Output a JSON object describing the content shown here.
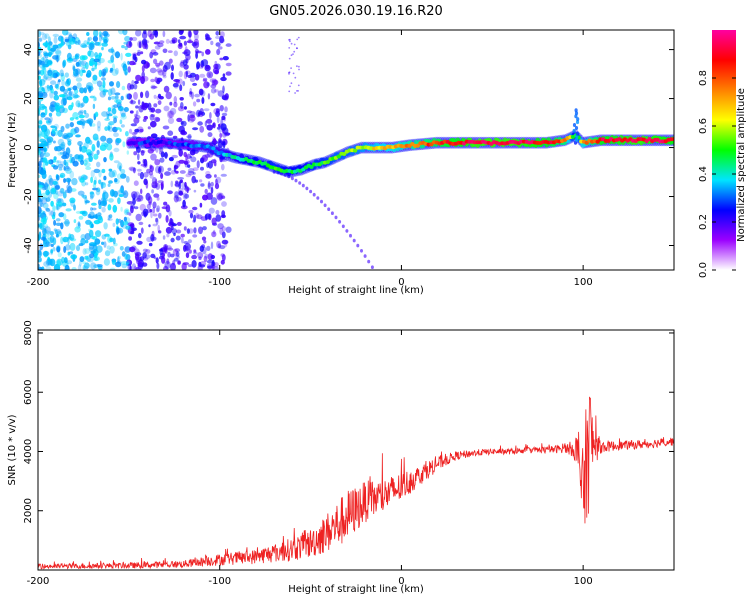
{
  "title": "GN05.2026.030.19.16.R20",
  "spectrogram": {
    "type": "heatmap",
    "xlabel": "Height of straight line (km)",
    "ylabel": "Frequency (Hz)",
    "xlim": [
      -200,
      150
    ],
    "ylim": [
      -50,
      48
    ],
    "xticks": [
      -200,
      -100,
      0,
      100
    ],
    "yticks": [
      -40,
      -20,
      0,
      20,
      40
    ],
    "ridge": {
      "x": [
        -145,
        -130,
        -115,
        -105,
        -100,
        -92,
        -85,
        -78,
        -70,
        -62,
        -55,
        -48,
        -42,
        -36,
        -30,
        -22,
        -15,
        -5,
        5,
        20,
        40,
        60,
        80,
        90,
        96,
        100,
        110,
        130,
        150
      ],
      "freq": [
        2,
        2,
        1,
        0,
        -2,
        -4,
        -5,
        -6,
        -8,
        -10,
        -9,
        -7,
        -6,
        -4,
        -2,
        0,
        0,
        0,
        1,
        2,
        2,
        2,
        2,
        3,
        5,
        2,
        3,
        3,
        3
      ],
      "amp": [
        0.25,
        0.25,
        0.3,
        0.35,
        0.35,
        0.4,
        0.45,
        0.45,
        0.5,
        0.45,
        0.45,
        0.5,
        0.5,
        0.55,
        0.55,
        0.6,
        0.65,
        0.7,
        0.75,
        0.85,
        0.95,
        0.95,
        0.9,
        0.8,
        0.4,
        0.7,
        0.9,
        0.95,
        0.9
      ]
    },
    "colorbar": {
      "label": "Normalized spectral amplitude",
      "ticks": [
        "0.0",
        "0.2",
        "0.4",
        "0.6",
        "0.8"
      ],
      "range": [
        0,
        1
      ],
      "colors": [
        "#ffffff",
        "#9b00ff",
        "#0000ff",
        "#00e5ff",
        "#00ff00",
        "#ffff00",
        "#ff8000",
        "#ff0000",
        "#ff00a0"
      ]
    }
  },
  "snr": {
    "type": "line",
    "xlabel": "Height of straight line (km)",
    "ylabel": "SNR (10 * v/v)",
    "xlim": [
      -200,
      150
    ],
    "ylim": [
      0,
      8100
    ],
    "xticks": [
      -200,
      -100,
      0,
      100
    ],
    "yticks": [
      2000,
      4000,
      6000,
      8000
    ],
    "color": "#ee2222",
    "envelope": {
      "x": [
        -200,
        -150,
        -120,
        -100,
        -80,
        -60,
        -50,
        -40,
        -30,
        -20,
        -10,
        0,
        10,
        20,
        30,
        40,
        50,
        60,
        70,
        80,
        90,
        95,
        98,
        100,
        103,
        106,
        110,
        120,
        135,
        150
      ],
      "mean": [
        120,
        150,
        200,
        350,
        450,
        700,
        900,
        1300,
        1800,
        2300,
        2500,
        2800,
        3200,
        3600,
        3850,
        3950,
        4000,
        4000,
        4050,
        4050,
        4100,
        4100,
        3600,
        2500,
        4400,
        4200,
        4150,
        4200,
        4250,
        4350
      ],
      "jitter": [
        80,
        100,
        120,
        200,
        250,
        400,
        500,
        700,
        900,
        700,
        600,
        500,
        350,
        250,
        150,
        120,
        100,
        100,
        100,
        120,
        150,
        300,
        1500,
        1500,
        2500,
        700,
        200,
        150,
        150,
        150
      ]
    }
  }
}
